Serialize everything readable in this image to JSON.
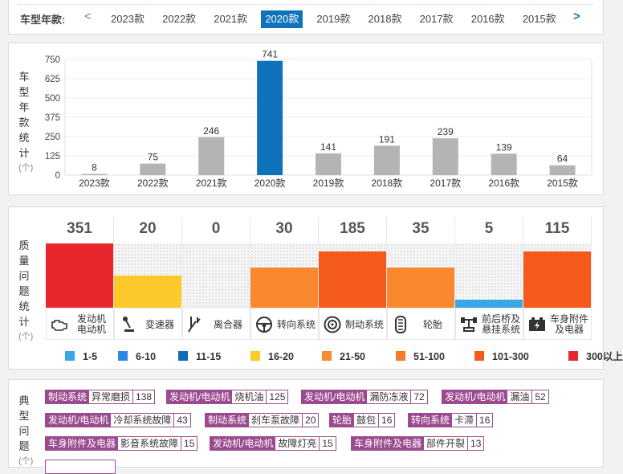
{
  "year_bar": {
    "label": "车型年款:",
    "prev_arrow": "<",
    "next_arrow": ">",
    "years": [
      "2023款",
      "2022款",
      "2021款",
      "2020款",
      "2019款",
      "2018款",
      "2017款",
      "2016款",
      "2015款"
    ],
    "active_year": "2020款"
  },
  "chart_section": {
    "label_chars": [
      "车",
      "型",
      "年",
      "款",
      "统",
      "计"
    ],
    "unit": "(个)"
  },
  "chart_data": {
    "type": "bar",
    "categories": [
      "2023款",
      "2022款",
      "2021款",
      "2020款",
      "2019款",
      "2018款",
      "2017款",
      "2016款",
      "2015款"
    ],
    "values": [
      8,
      75,
      246,
      741,
      141,
      191,
      239,
      139,
      64
    ],
    "yticks": [
      0,
      125,
      250,
      375,
      500,
      625,
      750
    ],
    "ylim": [
      0,
      750
    ],
    "highlight": "2020款",
    "colors": {
      "bar": "#b4b4b4",
      "highlight": "#0f73bb"
    }
  },
  "quality_section": {
    "label_chars": [
      "质",
      "量",
      "问",
      "题",
      "统",
      "计"
    ],
    "unit": "(个)",
    "columns": [
      {
        "value": 351,
        "label": "发动机\n电动机",
        "icon": "engine-icon",
        "color": "#e8262d"
      },
      {
        "value": 20,
        "label": "变速器",
        "icon": "gear-shift-icon",
        "color": "#fbc92c"
      },
      {
        "value": 0,
        "label": "离合器",
        "icon": "clutch-pedal-icon",
        "color": "#3aa6e8"
      },
      {
        "value": 30,
        "label": "转向系统",
        "icon": "steering-wheel-icon",
        "color": "#f9882f"
      },
      {
        "value": 185,
        "label": "制动系统",
        "icon": "brake-disc-icon",
        "color": "#f35a1c"
      },
      {
        "value": 35,
        "label": "轮胎",
        "icon": "tire-icon",
        "color": "#f9882f"
      },
      {
        "value": 5,
        "label": "前后桥及\n悬挂系统",
        "icon": "axle-icon",
        "color": "#3aa6e8"
      },
      {
        "value": 115,
        "label": "车身附件\n及电器",
        "icon": "battery-icon",
        "color": "#f35a1c"
      }
    ],
    "fill_fractions": [
      1.0,
      0.5,
      0,
      0.625,
      0.875,
      0.625,
      0.125,
      0.875
    ],
    "legend": [
      {
        "label": "1-5",
        "color": "#3aa6e8"
      },
      {
        "label": "6-10",
        "color": "#2c8ae0"
      },
      {
        "label": "11-15",
        "color": "#0f6db3"
      },
      {
        "label": "16-20",
        "color": "#fbc92c"
      },
      {
        "label": "21-50",
        "color": "#f9882f"
      },
      {
        "label": "51-100",
        "color": "#f47a2c"
      },
      {
        "label": "101-300",
        "color": "#f35a1c"
      },
      {
        "label": "300以上",
        "color": "#e8262d"
      }
    ]
  },
  "typical_section": {
    "label_chars": [
      "典",
      "型",
      "问",
      "题"
    ],
    "unit": "(个)",
    "tags": [
      {
        "category": "制动系统",
        "desc": "异常磨损",
        "count": "138"
      },
      {
        "category": "发动机/电动机",
        "desc": "烧机油",
        "count": "125"
      },
      {
        "category": "发动机/电动机",
        "desc": "漏防冻液",
        "count": "72"
      },
      {
        "category": "发动机/电动机",
        "desc": "漏油",
        "count": "52"
      },
      {
        "category": "发动机/电动机",
        "desc": "冷却系统故障",
        "count": "43"
      },
      {
        "category": "制动系统",
        "desc": "刹车泵故障",
        "count": "20"
      },
      {
        "category": "轮胎",
        "desc": "鼓包",
        "count": "16"
      },
      {
        "category": "转向系统",
        "desc": "卡滞",
        "count": "16"
      },
      {
        "category": "车身附件及电器",
        "desc": "影音系统故障",
        "count": "15"
      },
      {
        "category": "发动机/电动机",
        "desc": "故障灯亮",
        "count": "15"
      },
      {
        "category": "车身附件及电器",
        "desc": "部件开裂",
        "count": "13"
      }
    ]
  }
}
